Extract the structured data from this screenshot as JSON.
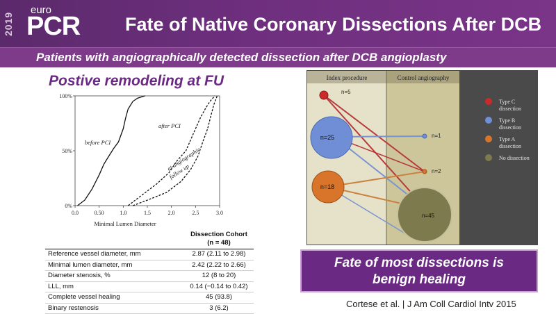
{
  "header": {
    "logo_year": "2019",
    "logo_top": "euro",
    "logo_main": "PCR",
    "title": "Fate of Native Coronary Dissections After DCB"
  },
  "subtitle": "Patients with angiographically detected dissection  after DCB angioplasty",
  "left_heading": "Postive remodeling at FU",
  "chart_data": {
    "type": "line",
    "xlabel": "Minimal Lumen Diameter",
    "ylabel": "",
    "xlim": [
      0.0,
      3.0
    ],
    "ylim": [
      0,
      100
    ],
    "x_ticks": [
      "0.0",
      "0.50",
      "1.0",
      "1.5",
      "2.0",
      "2.5",
      "3.0"
    ],
    "y_ticks": [
      "0%",
      "50%",
      "100%"
    ],
    "series": [
      {
        "name": "before PCI",
        "style": "solid",
        "x": [
          0.05,
          0.2,
          0.35,
          0.5,
          0.6,
          0.7,
          0.8,
          0.9,
          1.0,
          1.05,
          1.1,
          1.2,
          1.3,
          1.45
        ],
        "y": [
          0,
          5,
          15,
          28,
          38,
          45,
          52,
          58,
          70,
          80,
          88,
          95,
          98,
          100
        ]
      },
      {
        "name": "after PCI",
        "style": "dashed",
        "x": [
          1.1,
          1.4,
          1.7,
          1.95,
          2.1,
          2.3,
          2.4,
          2.5,
          2.6,
          2.7,
          2.8,
          2.9
        ],
        "y": [
          0,
          10,
          20,
          30,
          40,
          50,
          60,
          70,
          80,
          88,
          95,
          100
        ]
      },
      {
        "name": "at angiographic follow up",
        "style": "dashed",
        "x": [
          1.2,
          1.5,
          1.9,
          2.2,
          2.4,
          2.55,
          2.65,
          2.75,
          2.82,
          2.88,
          2.95
        ],
        "y": [
          0,
          5,
          12,
          22,
          33,
          45,
          58,
          70,
          82,
          92,
          100
        ]
      }
    ],
    "annotations": {
      "before": "before PCI",
      "after": "after PCI",
      "follow1": "at angiographic",
      "follow2": "follow up"
    }
  },
  "table": {
    "header_line1": "Dissection Cohort",
    "header_line2": "(n = 48)",
    "rows": [
      {
        "label": "Reference vessel diameter, mm",
        "value": "2.87 (2.11 to 2.98)"
      },
      {
        "label": "Minimal lumen diameter, mm",
        "value": "2.42 (2.22 to 2.66)"
      },
      {
        "label": "Diameter stenosis, %",
        "value": "12 (8 to 20)"
      },
      {
        "label": "LLL, mm",
        "value": "0.14 (−0.14 to 0.42)"
      },
      {
        "label": "Complete vessel healing",
        "value": "45 (93.8)"
      },
      {
        "label": "Binary restenosis",
        "value": "3 (6.2)"
      }
    ]
  },
  "diagram": {
    "col_index": "Index procedure",
    "col_control": "Control angiography",
    "nodes": {
      "typeC": "n=5",
      "typeB": "n=25",
      "typeA": "n=18",
      "ctrl1": "n=1",
      "ctrl2": "n=2",
      "ctrl45": "n=45"
    },
    "legend": [
      {
        "label1": "Type C",
        "label2": "dissection",
        "color": "#cc2a2a"
      },
      {
        "label1": "Type B",
        "label2": "dissection",
        "color": "#6f8ed6"
      },
      {
        "label1": "Type A",
        "label2": "dissection",
        "color": "#d8752a"
      },
      {
        "label1": "No dissection",
        "label2": "",
        "color": "#7d7a4e"
      }
    ]
  },
  "callout": {
    "line1": "Fate of most dissections is",
    "line2": "benign healing"
  },
  "citation": "Cortese et al. | J Am Coll Cardiol Intv 2015"
}
